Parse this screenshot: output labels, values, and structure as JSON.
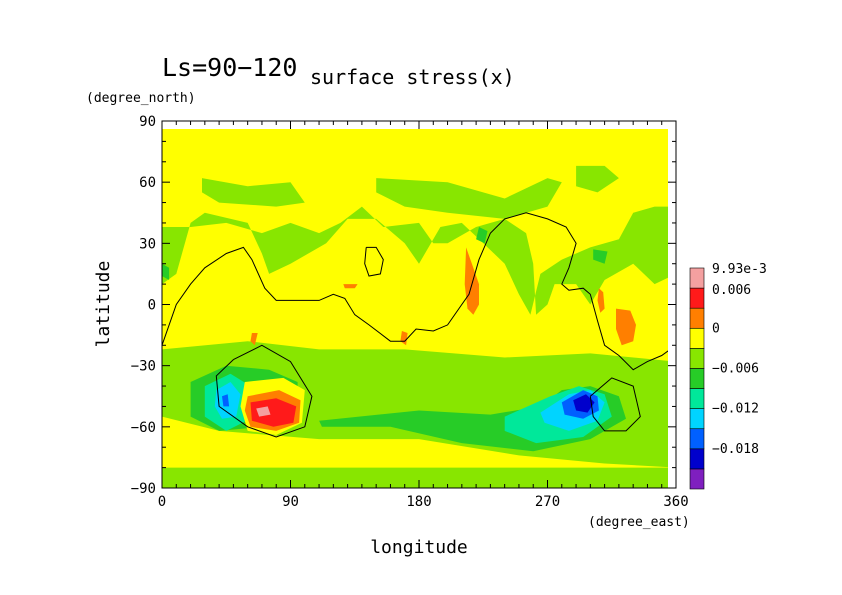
{
  "chart_data": {
    "type": "heatmap",
    "title_main": "Ls=90−120",
    "title_sub": "surface stress(x)",
    "xlabel": "longitude",
    "ylabel": "latitude",
    "x_units": "(degree_east)",
    "y_units": "(degree_north)",
    "xlim": [
      0,
      360
    ],
    "ylim": [
      -90,
      90
    ],
    "x_ticks": [
      0,
      90,
      180,
      270,
      360
    ],
    "x_tick_labels": [
      "0",
      "90",
      "180",
      "270",
      "360"
    ],
    "y_ticks": [
      90,
      60,
      30,
      0,
      -30,
      -60,
      -90
    ],
    "y_tick_labels": [
      "90",
      "60",
      "30",
      "0",
      "−30",
      "−60",
      "−90"
    ],
    "grid": false,
    "colorbar": {
      "position": "right",
      "colors": [
        "#7f1fbf",
        "#0000cc",
        "#0060ff",
        "#00d4ff",
        "#00e89a",
        "#27cc27",
        "#88e600",
        "#ffff00",
        "#ff7f00",
        "#ff1a1a",
        "#f4a0a0"
      ],
      "tick_labels": [
        "−0.018",
        "−0.012",
        "−0.006",
        "0",
        "0.006",
        "9.93e-3"
      ]
    },
    "background_level_color": "#ffff00",
    "regions": [
      {
        "level": "#88e600",
        "polygon": [
          [
            0,
            -90
          ],
          [
            360,
            -90
          ],
          [
            360,
            -80
          ],
          [
            0,
            -80
          ]
        ]
      },
      {
        "level": "#88e600",
        "polygon": [
          [
            0,
            -22
          ],
          [
            60,
            -18
          ],
          [
            110,
            -22
          ],
          [
            170,
            -22
          ],
          [
            240,
            -26
          ],
          [
            300,
            -24
          ],
          [
            360,
            -28
          ],
          [
            360,
            -80
          ],
          [
            310,
            -78
          ],
          [
            250,
            -74
          ],
          [
            180,
            -66
          ],
          [
            110,
            -66
          ],
          [
            40,
            -62
          ],
          [
            0,
            -55
          ]
        ]
      },
      {
        "level": "#27cc27",
        "polygon": [
          [
            20,
            -38
          ],
          [
            45,
            -30
          ],
          [
            75,
            -32
          ],
          [
            95,
            -38
          ],
          [
            95,
            -52
          ],
          [
            70,
            -60
          ],
          [
            40,
            -62
          ],
          [
            20,
            -55
          ]
        ]
      },
      {
        "level": "#00e89a",
        "polygon": [
          [
            30,
            -40
          ],
          [
            48,
            -34
          ],
          [
            62,
            -40
          ],
          [
            62,
            -56
          ],
          [
            45,
            -62
          ],
          [
            30,
            -55
          ]
        ]
      },
      {
        "level": "#00d4ff",
        "polygon": [
          [
            38,
            -42
          ],
          [
            48,
            -38
          ],
          [
            55,
            -44
          ],
          [
            52,
            -55
          ],
          [
            42,
            -56
          ],
          [
            37,
            -50
          ]
        ]
      },
      {
        "level": "#0060ff",
        "polygon": [
          [
            42,
            -45
          ],
          [
            46,
            -44
          ],
          [
            47,
            -50
          ],
          [
            43,
            -50
          ]
        ]
      },
      {
        "level": "#ffff00",
        "polygon": [
          [
            58,
            -38
          ],
          [
            85,
            -36
          ],
          [
            100,
            -42
          ],
          [
            98,
            -58
          ],
          [
            80,
            -64
          ],
          [
            60,
            -62
          ],
          [
            55,
            -50
          ]
        ]
      },
      {
        "level": "#ff7f00",
        "polygon": [
          [
            60,
            -45
          ],
          [
            82,
            -42
          ],
          [
            97,
            -47
          ],
          [
            96,
            -58
          ],
          [
            80,
            -62
          ],
          [
            62,
            -60
          ],
          [
            58,
            -52
          ]
        ]
      },
      {
        "level": "#ff1a1a",
        "polygon": [
          [
            62,
            -48
          ],
          [
            80,
            -46
          ],
          [
            94,
            -50
          ],
          [
            92,
            -58
          ],
          [
            78,
            -60
          ],
          [
            63,
            -57
          ]
        ]
      },
      {
        "level": "#f4a0a0",
        "polygon": [
          [
            66,
            -51
          ],
          [
            74,
            -50
          ],
          [
            76,
            -54
          ],
          [
            68,
            -55
          ]
        ]
      },
      {
        "level": "#27cc27",
        "polygon": [
          [
            110,
            -57
          ],
          [
            180,
            -52
          ],
          [
            230,
            -54
          ],
          [
            265,
            -50
          ],
          [
            280,
            -42
          ],
          [
            300,
            -40
          ],
          [
            320,
            -45
          ],
          [
            325,
            -56
          ],
          [
            300,
            -66
          ],
          [
            260,
            -72
          ],
          [
            210,
            -68
          ],
          [
            160,
            -60
          ],
          [
            112,
            -60
          ]
        ]
      },
      {
        "level": "#00e89a",
        "polygon": [
          [
            240,
            -55
          ],
          [
            272,
            -45
          ],
          [
            292,
            -40
          ],
          [
            310,
            -44
          ],
          [
            315,
            -55
          ],
          [
            295,
            -65
          ],
          [
            262,
            -68
          ],
          [
            240,
            -62
          ]
        ]
      },
      {
        "level": "#00d4ff",
        "polygon": [
          [
            265,
            -53
          ],
          [
            285,
            -44
          ],
          [
            300,
            -42
          ],
          [
            310,
            -48
          ],
          [
            305,
            -57
          ],
          [
            285,
            -62
          ],
          [
            268,
            -58
          ]
        ]
      },
      {
        "level": "#0060ff",
        "polygon": [
          [
            280,
            -48
          ],
          [
            295,
            -42
          ],
          [
            305,
            -45
          ],
          [
            306,
            -52
          ],
          [
            295,
            -56
          ],
          [
            282,
            -54
          ]
        ]
      },
      {
        "level": "#0000cc",
        "polygon": [
          [
            288,
            -47
          ],
          [
            297,
            -44
          ],
          [
            303,
            -48
          ],
          [
            298,
            -53
          ],
          [
            290,
            -52
          ]
        ]
      },
      {
        "level": "#88e600",
        "polygon": [
          [
            0,
            10
          ],
          [
            10,
            15
          ],
          [
            20,
            40
          ],
          [
            30,
            45
          ],
          [
            60,
            40
          ],
          [
            70,
            25
          ],
          [
            75,
            15
          ],
          [
            90,
            20
          ],
          [
            115,
            30
          ],
          [
            130,
            42
          ],
          [
            150,
            42
          ],
          [
            170,
            30
          ],
          [
            180,
            20
          ],
          [
            195,
            38
          ],
          [
            210,
            40
          ],
          [
            225,
            30
          ],
          [
            240,
            20
          ],
          [
            250,
            5
          ],
          [
            258,
            -5
          ],
          [
            265,
            15
          ],
          [
            280,
            22
          ],
          [
            300,
            28
          ],
          [
            320,
            32
          ],
          [
            330,
            45
          ],
          [
            345,
            48
          ],
          [
            360,
            48
          ],
          [
            360,
            15
          ],
          [
            345,
            10
          ],
          [
            330,
            20
          ],
          [
            310,
            12
          ],
          [
            300,
            0
          ],
          [
            290,
            10
          ],
          [
            275,
            10
          ],
          [
            270,
            0
          ],
          [
            262,
            -5
          ],
          [
            260,
            20
          ],
          [
            255,
            35
          ],
          [
            240,
            42
          ],
          [
            220,
            38
          ],
          [
            200,
            30
          ],
          [
            190,
            30
          ],
          [
            180,
            40
          ],
          [
            155,
            38
          ],
          [
            140,
            48
          ],
          [
            125,
            40
          ],
          [
            110,
            35
          ],
          [
            90,
            40
          ],
          [
            70,
            35
          ],
          [
            45,
            40
          ],
          [
            20,
            38
          ],
          [
            0,
            38
          ]
        ]
      },
      {
        "level": "#88e600",
        "polygon": [
          [
            28,
            62
          ],
          [
            60,
            58
          ],
          [
            90,
            60
          ],
          [
            100,
            50
          ],
          [
            80,
            48
          ],
          [
            40,
            50
          ],
          [
            28,
            55
          ]
        ]
      },
      {
        "level": "#88e600",
        "polygon": [
          [
            150,
            62
          ],
          [
            200,
            60
          ],
          [
            240,
            52
          ],
          [
            270,
            62
          ],
          [
            280,
            60
          ],
          [
            270,
            48
          ],
          [
            240,
            42
          ],
          [
            200,
            45
          ],
          [
            170,
            48
          ],
          [
            150,
            55
          ]
        ]
      },
      {
        "level": "#88e600",
        "polygon": [
          [
            290,
            68
          ],
          [
            310,
            68
          ],
          [
            320,
            62
          ],
          [
            305,
            55
          ],
          [
            290,
            58
          ]
        ]
      },
      {
        "level": "#88e600",
        "polygon": [
          [
            120,
            -36
          ],
          [
            140,
            -34
          ],
          [
            150,
            -38
          ],
          [
            130,
            -40
          ]
        ]
      },
      {
        "level": "#ff7f00",
        "polygon": [
          [
            213,
            28
          ],
          [
            218,
            18
          ],
          [
            222,
            10
          ],
          [
            222,
            0
          ],
          [
            218,
            -5
          ],
          [
            214,
            -2
          ],
          [
            212,
            10
          ]
        ]
      },
      {
        "level": "#ff7f00",
        "polygon": [
          [
            318,
            -2
          ],
          [
            328,
            -3
          ],
          [
            332,
            -10
          ],
          [
            330,
            -18
          ],
          [
            322,
            -20
          ],
          [
            318,
            -12
          ]
        ]
      },
      {
        "level": "#ff7f00",
        "polygon": [
          [
            306,
            8
          ],
          [
            309,
            6
          ],
          [
            310,
            -2
          ],
          [
            307,
            -4
          ],
          [
            305,
            2
          ]
        ]
      },
      {
        "level": "#ff7f00",
        "polygon": [
          [
            168,
            -13
          ],
          [
            172,
            -14
          ],
          [
            171,
            -20
          ],
          [
            167,
            -18
          ]
        ]
      },
      {
        "level": "#ff7f00",
        "polygon": [
          [
            63,
            -14
          ],
          [
            67,
            -14
          ],
          [
            65,
            -20
          ],
          [
            62,
            -18
          ]
        ]
      },
      {
        "level": "#ff7f00",
        "polygon": [
          [
            127,
            10
          ],
          [
            137,
            10
          ],
          [
            135,
            8
          ],
          [
            128,
            8
          ]
        ]
      },
      {
        "level": "#27cc27",
        "polygon": [
          [
            222,
            38
          ],
          [
            228,
            36
          ],
          [
            226,
            30
          ],
          [
            220,
            32
          ]
        ]
      },
      {
        "level": "#27cc27",
        "polygon": [
          [
            302,
            27
          ],
          [
            312,
            26
          ],
          [
            310,
            20
          ],
          [
            302,
            22
          ]
        ]
      },
      {
        "level": "#27cc27",
        "polygon": [
          [
            0,
            20
          ],
          [
            5,
            18
          ],
          [
            5,
            12
          ],
          [
            0,
            14
          ]
        ]
      }
    ],
    "contours": [
      [
        [
          0,
          -20
        ],
        [
          10,
          0
        ],
        [
          20,
          10
        ],
        [
          30,
          18
        ],
        [
          45,
          25
        ],
        [
          57,
          28
        ],
        [
          63,
          22
        ],
        [
          72,
          8
        ],
        [
          80,
          2
        ],
        [
          95,
          2
        ],
        [
          110,
          2
        ],
        [
          120,
          5
        ],
        [
          128,
          3
        ],
        [
          135,
          -5
        ],
        [
          145,
          -10
        ],
        [
          160,
          -18
        ],
        [
          170,
          -18
        ],
        [
          178,
          -12
        ],
        [
          190,
          -13
        ],
        [
          200,
          -10
        ],
        [
          210,
          0
        ],
        [
          215,
          5
        ],
        [
          222,
          22
        ],
        [
          230,
          35
        ],
        [
          240,
          42
        ],
        [
          255,
          45
        ],
        [
          270,
          42
        ],
        [
          283,
          38
        ],
        [
          290,
          30
        ],
        [
          285,
          18
        ],
        [
          280,
          10
        ],
        [
          285,
          7
        ],
        [
          295,
          8
        ],
        [
          300,
          5
        ],
        [
          305,
          -8
        ],
        [
          310,
          -20
        ],
        [
          320,
          -25
        ],
        [
          330,
          -32
        ],
        [
          340,
          -28
        ],
        [
          350,
          -25
        ],
        [
          360,
          -20
        ]
      ],
      [
        [
          143,
          28
        ],
        [
          150,
          28
        ],
        [
          155,
          22
        ],
        [
          153,
          15
        ],
        [
          145,
          14
        ],
        [
          142,
          20
        ],
        [
          143,
          28
        ]
      ],
      [
        [
          50,
          -27
        ],
        [
          70,
          -20
        ],
        [
          90,
          -28
        ],
        [
          105,
          -45
        ],
        [
          100,
          -60
        ],
        [
          80,
          -65
        ],
        [
          60,
          -60
        ],
        [
          40,
          -50
        ],
        [
          38,
          -35
        ],
        [
          50,
          -27
        ]
      ],
      [
        [
          300,
          -45
        ],
        [
          315,
          -36
        ],
        [
          330,
          -40
        ],
        [
          335,
          -55
        ],
        [
          325,
          -62
        ],
        [
          310,
          -62
        ],
        [
          302,
          -55
        ],
        [
          300,
          -45
        ]
      ]
    ]
  }
}
